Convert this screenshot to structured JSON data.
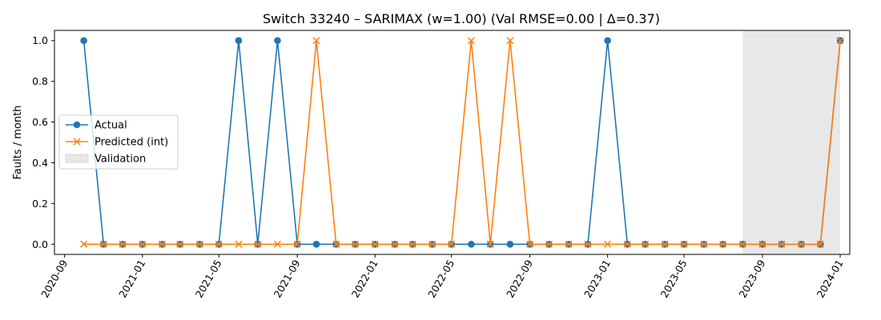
{
  "chart_data": {
    "type": "line",
    "title": "Switch 33240 – SARIMAX (w=1.00) (Val RMSE=0.00 | Δ=0.37)",
    "xlabel": "",
    "ylabel": "Faults / month",
    "ylim": [
      -0.05,
      1.05
    ],
    "xlim": [
      "2020-08-16",
      "2024-01-16"
    ],
    "yticks": [
      0.0,
      0.2,
      0.4,
      0.6,
      0.8,
      1.0
    ],
    "ytick_labels": [
      "0.0",
      "0.2",
      "0.4",
      "0.6",
      "0.8",
      "1.0"
    ],
    "xticks": [
      "2020-09-01",
      "2021-01-01",
      "2021-05-01",
      "2021-09-01",
      "2022-01-01",
      "2022-05-01",
      "2022-09-01",
      "2023-01-01",
      "2023-05-01",
      "2023-09-01",
      "2024-01-01"
    ],
    "xtick_labels": [
      "2020-09",
      "2021-01",
      "2021-05",
      "2021-09",
      "2022-01",
      "2022-05",
      "2022-09",
      "2023-01",
      "2023-05",
      "2023-09",
      "2024-01"
    ],
    "x": [
      "2020-10",
      "2020-11",
      "2020-12",
      "2021-01",
      "2021-02",
      "2021-03",
      "2021-04",
      "2021-05",
      "2021-06",
      "2021-07",
      "2021-08",
      "2021-09",
      "2021-10",
      "2021-11",
      "2021-12",
      "2022-01",
      "2022-02",
      "2022-03",
      "2022-04",
      "2022-05",
      "2022-06",
      "2022-07",
      "2022-08",
      "2022-09",
      "2022-10",
      "2022-11",
      "2022-12",
      "2023-01",
      "2023-02",
      "2023-03",
      "2023-04",
      "2023-05",
      "2023-06",
      "2023-07",
      "2023-08",
      "2023-09",
      "2023-10",
      "2023-11",
      "2023-12",
      "2024-01"
    ],
    "series": [
      {
        "name": "Actual",
        "color": "#1f77b4",
        "marker": "circle",
        "values": [
          1,
          0,
          0,
          0,
          0,
          0,
          0,
          0,
          1,
          0,
          1,
          0,
          0,
          0,
          0,
          0,
          0,
          0,
          0,
          0,
          0,
          0,
          0,
          0,
          0,
          0,
          0,
          1,
          0,
          0,
          0,
          0,
          0,
          0,
          0,
          0,
          0,
          0,
          0,
          1
        ]
      },
      {
        "name": "Predicted (int)",
        "color": "#ff7f0e",
        "marker": "x",
        "values": [
          0,
          0,
          0,
          0,
          0,
          0,
          0,
          0,
          0,
          0,
          0,
          0,
          1,
          0,
          0,
          0,
          0,
          0,
          0,
          0,
          1,
          0,
          1,
          0,
          0,
          0,
          0,
          0,
          0,
          0,
          0,
          0,
          0,
          0,
          0,
          0,
          0,
          0,
          0,
          1
        ]
      }
    ],
    "validation": {
      "name": "Validation",
      "start": "2023-08",
      "end": "2024-01",
      "color": "#e8e8e8"
    },
    "legend": {
      "placement": "center-left"
    },
    "grid": false
  }
}
